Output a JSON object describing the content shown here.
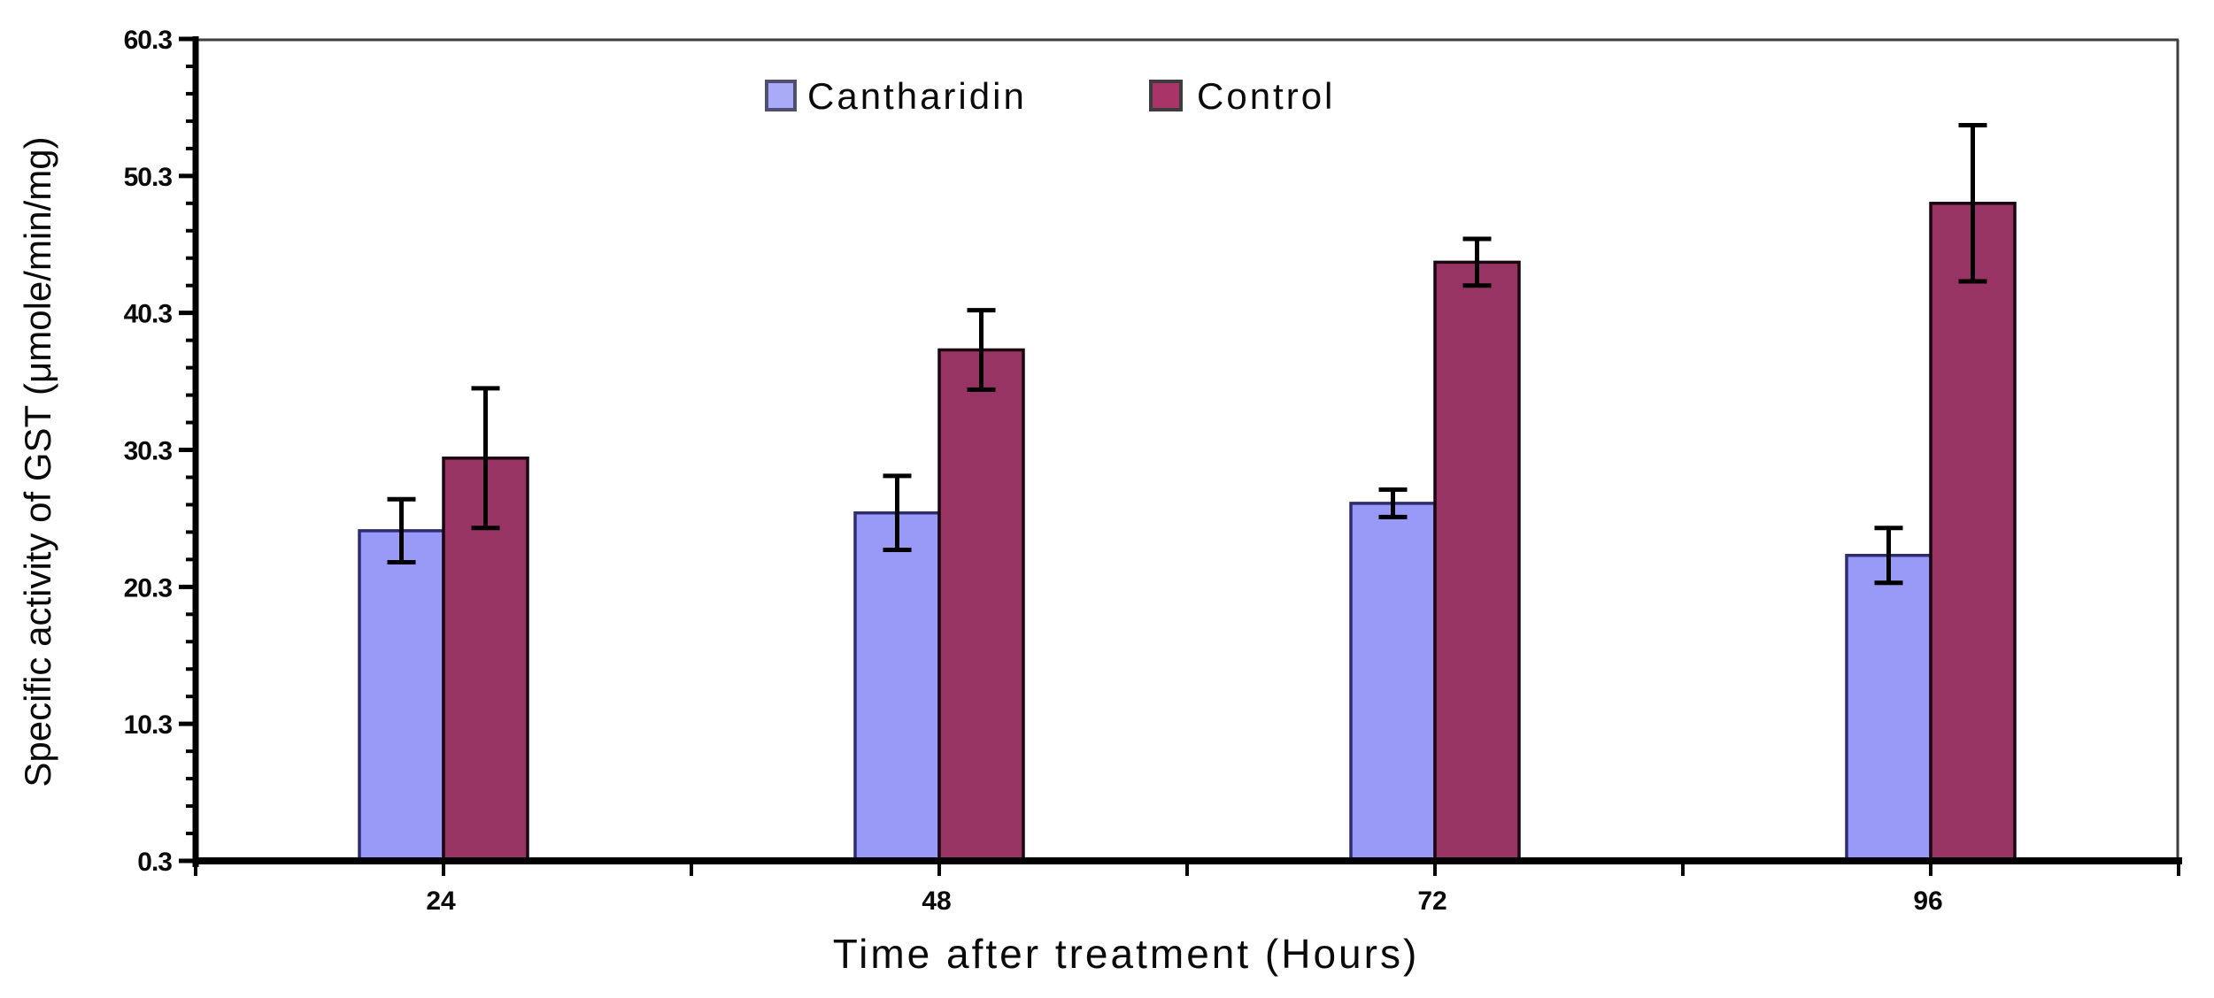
{
  "chart_data": {
    "type": "bar",
    "title": "",
    "xlabel": "Time after treatment (Hours)",
    "ylabel": "Specific activity of GST (μmole/min/mg)",
    "categories": [
      "24",
      "48",
      "72",
      "96"
    ],
    "series": [
      {
        "name": "Cantharidin",
        "fill": "#9999F7",
        "stroke": "#2E2E6E",
        "legend_fill": "#AAABF8",
        "legend_stroke": "#50506E",
        "values": [
          24.4,
          25.7,
          26.4,
          22.6
        ],
        "errors": [
          2.3,
          2.7,
          1.0,
          2.0
        ]
      },
      {
        "name": "Control",
        "fill": "#983464",
        "stroke": "#1A060F",
        "legend_fill": "#A83468",
        "legend_stroke": "#3C3C3C",
        "values": [
          29.7,
          37.6,
          44.0,
          48.3
        ],
        "errors": [
          5.1,
          2.9,
          1.7,
          5.7
        ]
      }
    ],
    "ylim": [
      0.3,
      60.3
    ],
    "ytick_labels": [
      "0.3",
      "10.3",
      "20.3",
      "30.3",
      "40.3",
      "50.3",
      "60.3"
    ],
    "ytick_major_step": 10,
    "ytick_minor_step": 2,
    "legend_position": "top-center",
    "grid": false,
    "error_bar_color": "#000000",
    "axis_color": "#000000",
    "border_color": "#3D3D3D"
  }
}
